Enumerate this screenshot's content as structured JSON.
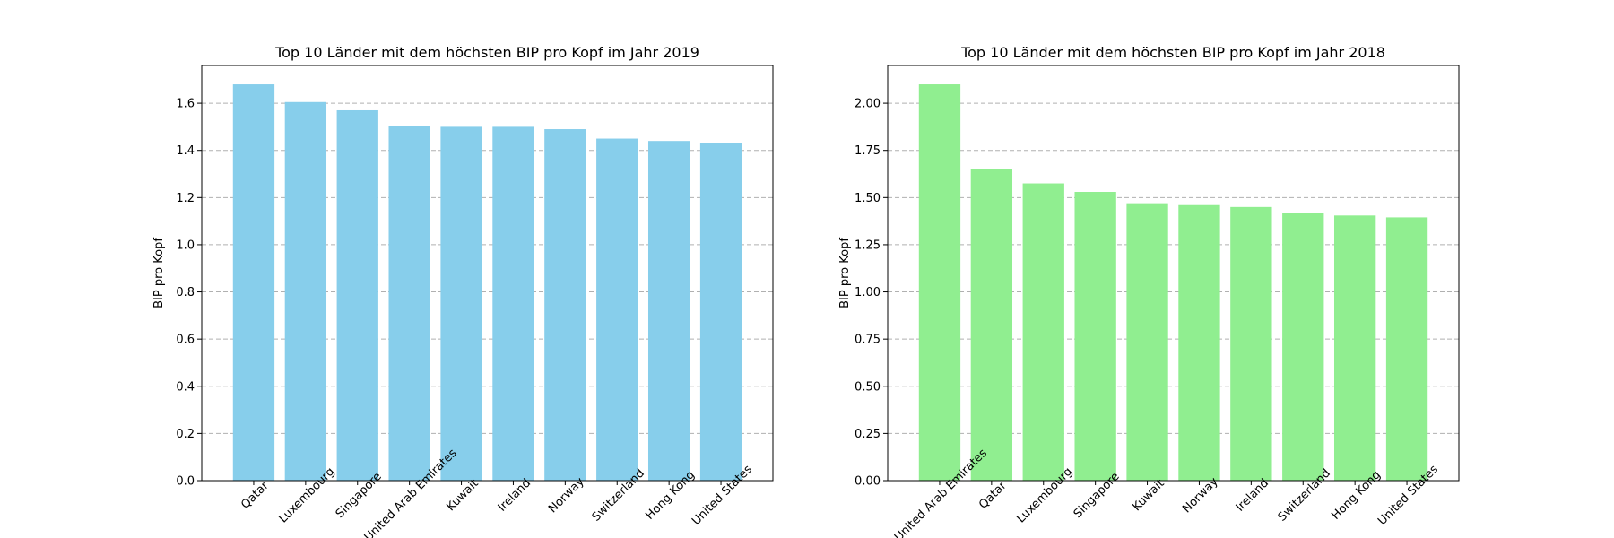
{
  "chart_data": [
    {
      "type": "bar",
      "title": "Top 10 Länder mit dem höchsten BIP pro Kopf im Jahr 2019",
      "xlabel": "",
      "ylabel": "BIP pro Kopf",
      "categories": [
        "Qatar",
        "Luxembourg",
        "Singapore",
        "United Arab Emirates",
        "Kuwait",
        "Ireland",
        "Norway",
        "Switzerland",
        "Hong Kong",
        "United States"
      ],
      "values": [
        1.68,
        1.605,
        1.57,
        1.505,
        1.5,
        1.5,
        1.49,
        1.45,
        1.44,
        1.43
      ],
      "ylim": [
        0,
        1.76
      ],
      "yticks": [
        0.0,
        0.2,
        0.4,
        0.6,
        0.8,
        1.0,
        1.2,
        1.4,
        1.6
      ],
      "ytick_labels": [
        "0.0",
        "0.2",
        "0.4",
        "0.6",
        "0.8",
        "1.0",
        "1.2",
        "1.4",
        "1.6"
      ],
      "grid": "y-dashed",
      "color": "#87CEEB"
    },
    {
      "type": "bar",
      "title": "Top 10 Länder mit dem höchsten BIP pro Kopf im Jahr 2018",
      "xlabel": "",
      "ylabel": "BIP pro Kopf",
      "categories": [
        "United Arab Emirates",
        "Qatar",
        "Luxembourg",
        "Singapore",
        "Kuwait",
        "Norway",
        "Ireland",
        "Switzerland",
        "Hong Kong",
        "United States"
      ],
      "values": [
        2.1,
        1.65,
        1.575,
        1.53,
        1.47,
        1.46,
        1.45,
        1.42,
        1.405,
        1.395
      ],
      "ylim": [
        0,
        2.2
      ],
      "yticks": [
        0.0,
        0.25,
        0.5,
        0.75,
        1.0,
        1.25,
        1.5,
        1.75,
        2.0
      ],
      "ytick_labels": [
        "0.00",
        "0.25",
        "0.50",
        "0.75",
        "1.00",
        "1.25",
        "1.50",
        "1.75",
        "2.00"
      ],
      "grid": "y-dashed",
      "color": "#90EE90"
    }
  ]
}
